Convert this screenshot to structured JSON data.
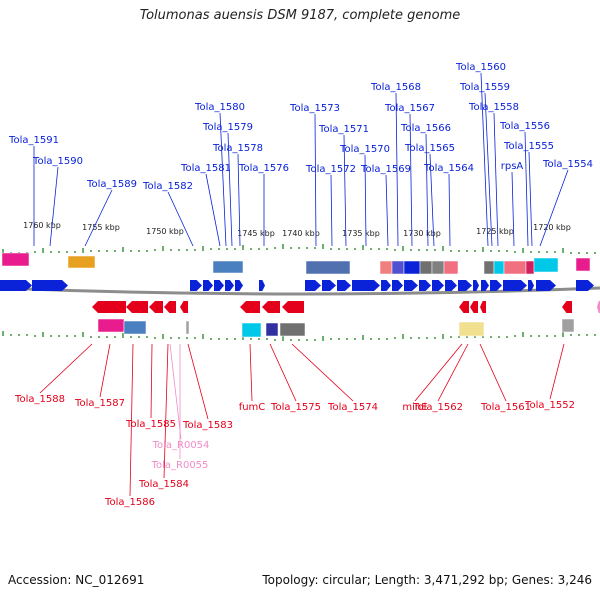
{
  "title": "Tolumonas auensis DSM 9187, complete genome",
  "footer": {
    "accession": "Accession: NC_012691",
    "summary": "Topology: circular; Length: 3,471,292 bp; Genes: 3,246"
  },
  "colors": {
    "forward_gene": "#0a22d8",
    "reverse_gene": "#e4001b",
    "rna_gene": "#f08cc8",
    "backbone": "#8c8c8c",
    "tick": "#2e8b2e"
  },
  "scale_labels": [
    "1760 kbp",
    "1755 kbp",
    "1750 kbp",
    "1745 kbp",
    "1740 kbp",
    "1735 kbp",
    "1730 kbp",
    "1725 kbp",
    "1720 kbp"
  ],
  "top_labels": [
    "Tola_1591",
    "Tola_1590",
    "Tola_1589",
    "Tola_1582",
    "Tola_1581",
    "Tola_1580",
    "Tola_1579",
    "Tola_1578",
    "Tola_1576",
    "Tola_1573",
    "Tola_1572",
    "Tola_1571",
    "Tola_1570",
    "Tola_1569",
    "Tola_1568",
    "Tola_1567",
    "Tola_1566",
    "Tola_1565",
    "Tola_1564",
    "Tola_1560",
    "Tola_1559",
    "Tola_1558",
    "Tola_1556",
    "Tola_1555",
    "rpsA",
    "Tola_1554"
  ],
  "bottom_labels": [
    "Tola_1588",
    "Tola_1587",
    "Tola_1586",
    "Tola_1585",
    "Tola_R0054",
    "Tola_R0055",
    "Tola_1584",
    "Tola_1583",
    "fumC",
    "Tola_1575",
    "Tola_1574",
    "minE",
    "Tola_1562",
    "Tola_1561",
    "Tola_1552"
  ]
}
